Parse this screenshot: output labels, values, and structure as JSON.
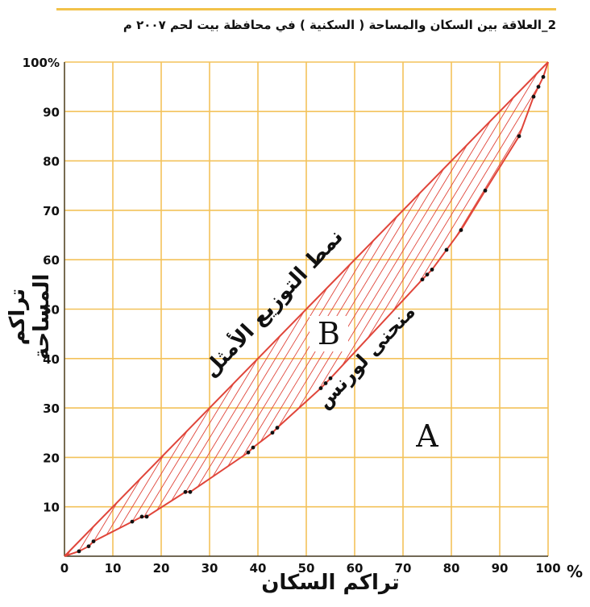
{
  "title": "2_العلاقة بين السكان والمساحة ( السكنية ) في محافظة بيت لحم ٢٠٠٧ م",
  "chart_data": {
    "type": "line",
    "title": "2_العلاقة بين السكان والمساحة ( السكنية ) في محافظة بيت لحم ٢٠٠٧ م",
    "xlabel": "تراكم السكان",
    "ylabel": "تراكم المساحة",
    "x_unit": "%",
    "y_unit": "%",
    "xlim": [
      0,
      100
    ],
    "ylim": [
      0,
      100
    ],
    "x_ticks": [
      "0",
      "10",
      "20",
      "30",
      "40",
      "50",
      "60",
      "70",
      "80",
      "90",
      "100"
    ],
    "y_ticks": [
      "10",
      "20",
      "30",
      "40",
      "50",
      "60",
      "70",
      "80",
      "90",
      "100%"
    ],
    "grid": true,
    "colors": {
      "grid": "#f3c25a",
      "curve": "#e0453a",
      "hatch": "#e0453a",
      "points": "#111111"
    },
    "series": [
      {
        "name": "نمط التوزيع الأمثل",
        "x": [
          0,
          100
        ],
        "y": [
          0,
          100
        ]
      },
      {
        "name": "منحنى لورنس",
        "x": [
          0,
          3,
          5,
          6,
          14,
          16,
          17,
          25,
          26,
          38,
          39,
          43,
          44,
          53,
          54,
          55,
          74,
          75,
          76,
          79,
          82,
          87,
          94,
          97,
          98,
          99,
          100
        ],
        "y": [
          0,
          1,
          2,
          3,
          7,
          8,
          8,
          13,
          13,
          21,
          22,
          25,
          26,
          34,
          35,
          36,
          56,
          57,
          58,
          62,
          66,
          74,
          85,
          93,
          95,
          97,
          100
        ]
      }
    ],
    "annotations": [
      {
        "text": "A"
      },
      {
        "text": "B"
      }
    ]
  }
}
